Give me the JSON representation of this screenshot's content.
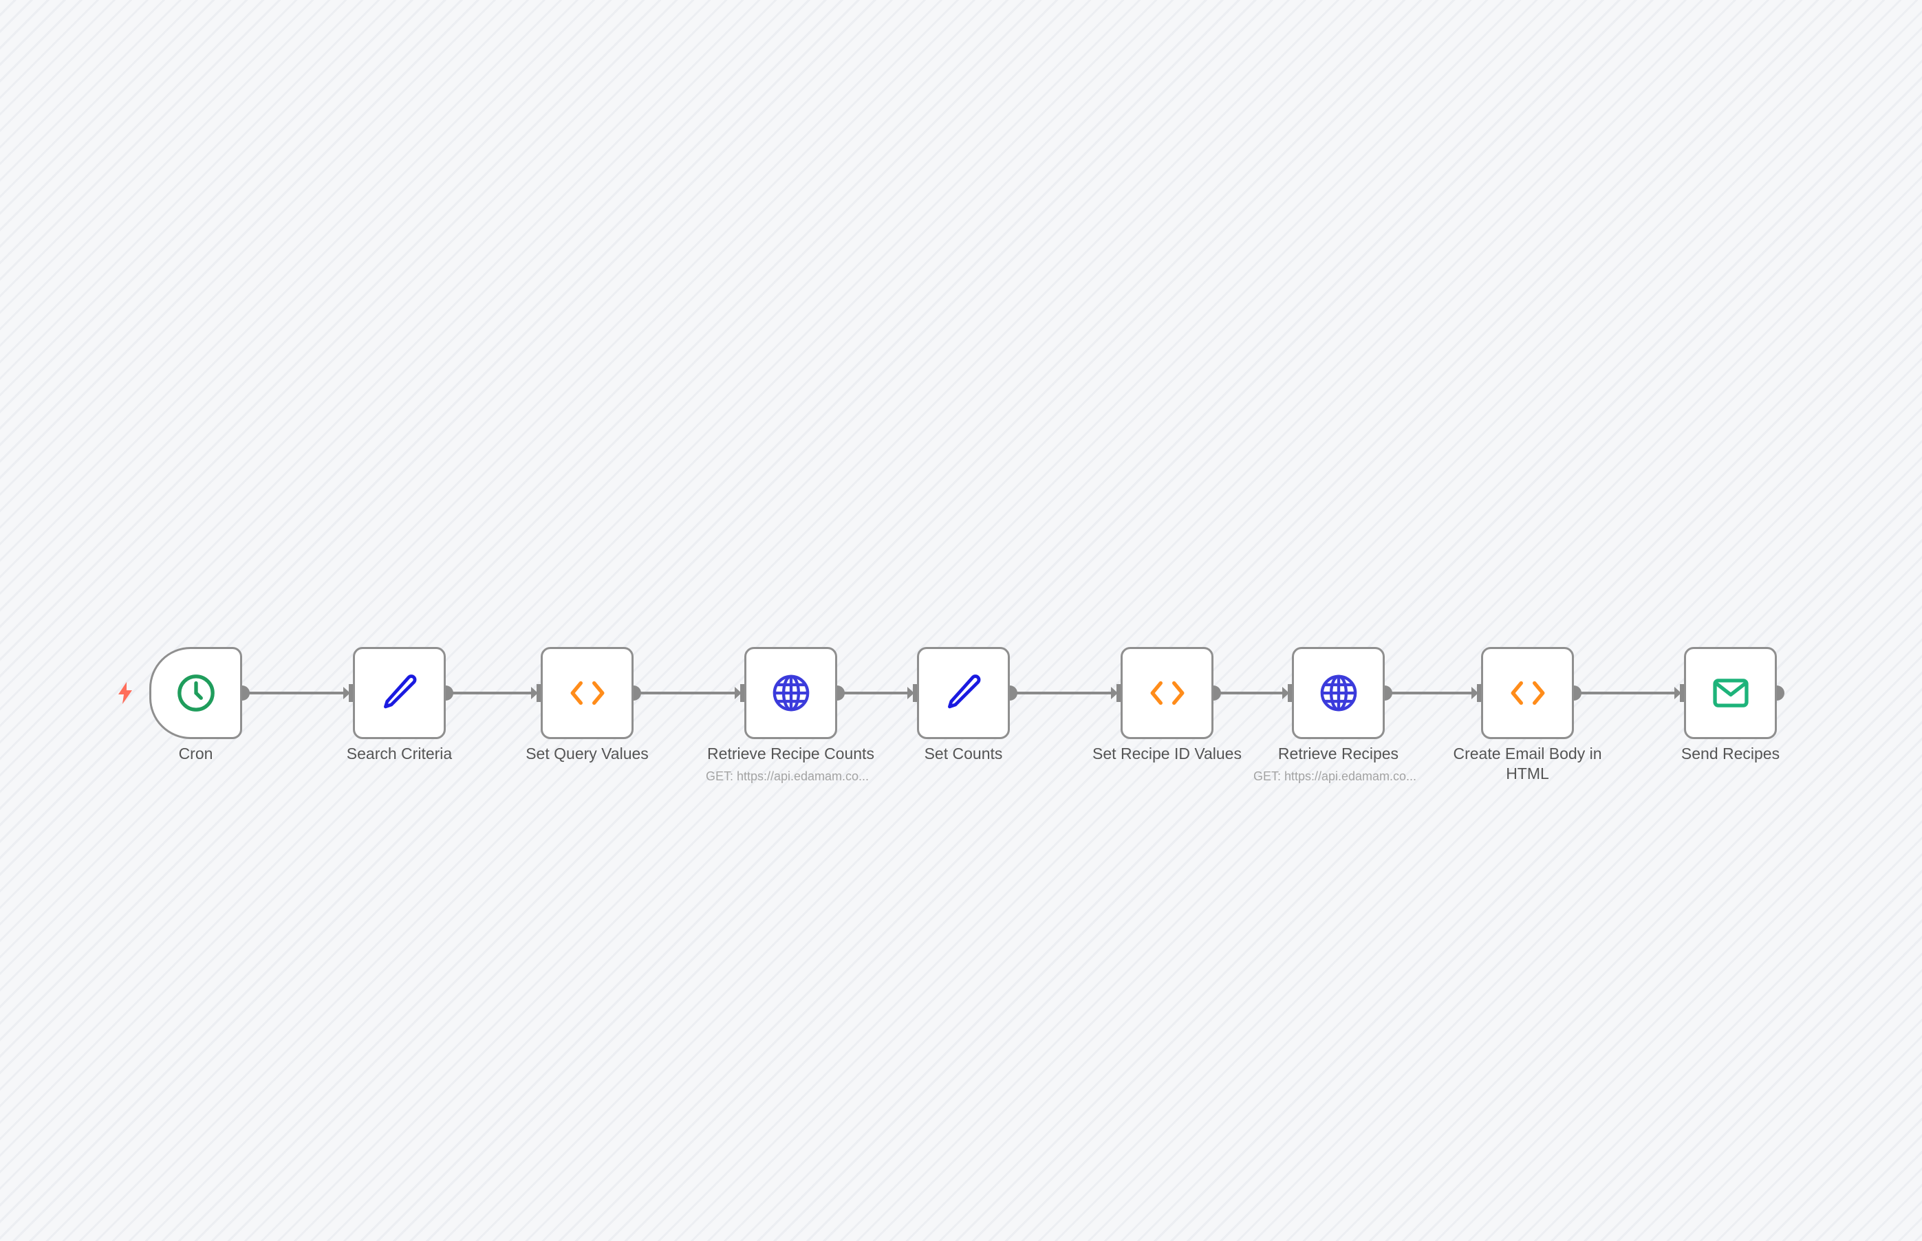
{
  "workflow": {
    "nodes": [
      {
        "id": "cron",
        "label": "Cron",
        "icon": "clock-icon",
        "color": "#1f9d5c",
        "trigger": true
      },
      {
        "id": "search-criteria",
        "label": "Search Criteria",
        "icon": "pencil-icon",
        "color": "#1a1ae0"
      },
      {
        "id": "set-query-values",
        "label": "Set Query Values",
        "icon": "code-icon",
        "color": "#ff8c1a"
      },
      {
        "id": "retrieve-recipe-counts",
        "label": "Retrieve Recipe Counts",
        "subtitle": "GET: https://api.edamam.co...",
        "icon": "globe-icon",
        "color": "#3b3bdb"
      },
      {
        "id": "set-counts",
        "label": "Set Counts",
        "icon": "pencil-icon",
        "color": "#1a1ae0"
      },
      {
        "id": "set-recipe-id-values",
        "label": "Set Recipe ID Values",
        "icon": "code-icon",
        "color": "#ff8c1a"
      },
      {
        "id": "retrieve-recipes",
        "label": "Retrieve Recipes",
        "subtitle": "GET: https://api.edamam.co...",
        "icon": "globe-icon",
        "color": "#3b3bdb"
      },
      {
        "id": "create-email-body",
        "label": "Create Email Body in HTML",
        "icon": "code-icon",
        "color": "#ff8c1a"
      },
      {
        "id": "send-recipes",
        "label": "Send Recipes",
        "icon": "envelope-icon",
        "color": "#1db37a"
      }
    ],
    "trigger_color": "#ff6d5a",
    "edge_color": "#8a8a8a"
  }
}
